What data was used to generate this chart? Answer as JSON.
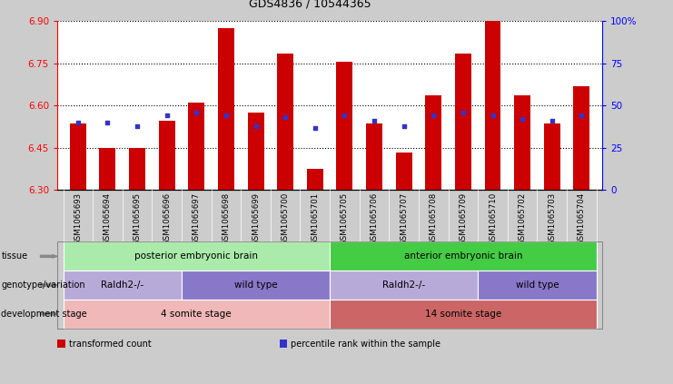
{
  "title": "GDS4836 / 10544365",
  "samples": [
    "GSM1065693",
    "GSM1065694",
    "GSM1065695",
    "GSM1065696",
    "GSM1065697",
    "GSM1065698",
    "GSM1065699",
    "GSM1065700",
    "GSM1065701",
    "GSM1065705",
    "GSM1065706",
    "GSM1065707",
    "GSM1065708",
    "GSM1065709",
    "GSM1065710",
    "GSM1065702",
    "GSM1065703",
    "GSM1065704"
  ],
  "bar_values": [
    6.535,
    6.45,
    6.45,
    6.545,
    6.61,
    6.875,
    6.575,
    6.785,
    6.375,
    6.755,
    6.535,
    6.435,
    6.635,
    6.785,
    6.905,
    6.635,
    6.535,
    6.67
  ],
  "percentile_values": [
    40,
    40,
    38,
    44,
    46,
    44,
    38,
    43,
    37,
    44,
    41,
    38,
    44,
    46,
    44,
    42,
    41,
    44
  ],
  "ylim_left": [
    6.3,
    6.9
  ],
  "ylim_right": [
    0,
    100
  ],
  "yticks_left": [
    6.3,
    6.45,
    6.6,
    6.75,
    6.9
  ],
  "yticks_right": [
    0,
    25,
    50,
    75,
    100
  ],
  "bar_color": "#cc0000",
  "percentile_color": "#3333cc",
  "bg_color": "#cccccc",
  "plot_bg": "#ffffff",
  "xtick_bg": "#d0d0d0",
  "tissue_groups": [
    {
      "label": "posterior embryonic brain",
      "start": 0,
      "end": 9,
      "color": "#aaeaaa"
    },
    {
      "label": "anterior embryonic brain",
      "start": 9,
      "end": 18,
      "color": "#44cc44"
    }
  ],
  "genotype_groups": [
    {
      "label": "Raldh2-/-",
      "start": 0,
      "end": 4,
      "color": "#b8aad8"
    },
    {
      "label": "wild type",
      "start": 4,
      "end": 9,
      "color": "#8878c8"
    },
    {
      "label": "Raldh2-/-",
      "start": 9,
      "end": 14,
      "color": "#b8aad8"
    },
    {
      "label": "wild type",
      "start": 14,
      "end": 18,
      "color": "#8878c8"
    }
  ],
  "dev_groups": [
    {
      "label": "4 somite stage",
      "start": 0,
      "end": 9,
      "color": "#f0b8b8"
    },
    {
      "label": "14 somite stage",
      "start": 9,
      "end": 18,
      "color": "#cc6666"
    }
  ],
  "row_labels": [
    "tissue",
    "genotype/variation",
    "development stage"
  ],
  "legend_items": [
    {
      "label": "transformed count",
      "color": "#cc0000"
    },
    {
      "label": "percentile rank within the sample",
      "color": "#3333cc"
    }
  ]
}
